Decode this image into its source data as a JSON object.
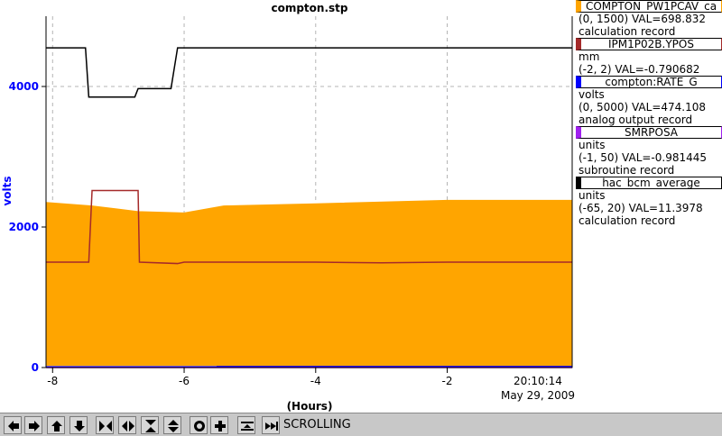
{
  "chart_data": {
    "type": "line",
    "title": "compton.stp",
    "xlabel": "(Hours)",
    "ylabel": "volts",
    "xlim": [
      -8.1,
      -0.1
    ],
    "ylim": [
      0,
      5000
    ],
    "x_ticks": [
      -8,
      -6,
      -4,
      -2
    ],
    "y_ticks": [
      0,
      2000,
      4000
    ],
    "x_tick_labels": [
      "-8",
      "-6",
      "-4",
      "-2"
    ],
    "y_tick_labels": [
      "0",
      "2000",
      "4000"
    ],
    "time_label": "20:10:14",
    "date_label": "May 29, 2009",
    "grid": true,
    "legend_position": "right",
    "series": [
      {
        "name": "compton:RATE_G",
        "color": "#0000ff",
        "style": "band",
        "x": [
          -8.1,
          -5.5,
          -5.45,
          -4.0,
          -3.0,
          -2.1,
          -1.4,
          -0.9,
          -0.1
        ],
        "low": [
          0,
          0,
          0,
          0,
          0,
          0,
          0,
          0,
          0
        ],
        "high": [
          15,
          15,
          500,
          530,
          500,
          350,
          480,
          460,
          470
        ]
      },
      {
        "name": "COMPTON_PW1PCAV_ca",
        "color": "#ffa500",
        "style": "band",
        "x": [
          -8.1,
          -7.4,
          -6.7,
          -6.0,
          -5.4,
          -4.0,
          -2.0,
          -0.1
        ],
        "low": [
          30,
          30,
          30,
          30,
          30,
          30,
          30,
          30
        ],
        "high": [
          2350,
          2300,
          2220,
          2200,
          2300,
          2330,
          2380,
          2380
        ]
      },
      {
        "name": "IPM1P02B.YPOS",
        "color": "#a52a2a",
        "x": [
          -8.1,
          -7.45,
          -7.4,
          -6.7,
          -6.68,
          -6.1,
          -6.0,
          -5.5,
          -5.45,
          -4.0,
          -3.0,
          -2.0,
          -1.0,
          -0.1
        ],
        "y": [
          1500,
          1500,
          2520,
          2520,
          1500,
          1480,
          1500,
          1500,
          1500,
          1500,
          1490,
          1500,
          1500,
          1500
        ]
      },
      {
        "name": "hac_bcm_average",
        "color": "#000000",
        "x": [
          -8.1,
          -7.5,
          -7.45,
          -6.75,
          -6.7,
          -6.2,
          -6.1,
          -5.0,
          -4.0,
          -3.0,
          -2.0,
          -1.0,
          -0.1
        ],
        "y": [
          4550,
          4550,
          3850,
          3850,
          3970,
          3970,
          4550,
          4550,
          4550,
          4550,
          4550,
          4550,
          4550
        ]
      },
      {
        "name": "SMRPOSA",
        "color": "#a020f0",
        "x": [
          -8.1,
          -6.0,
          -4.0,
          -2.0,
          -0.1
        ],
        "y": [
          0,
          0,
          0,
          0,
          0
        ]
      }
    ]
  },
  "legend": [
    {
      "name": "COMPTON_PW1PCAV_ca",
      "color": "#ffa500",
      "units": "",
      "range": "(0, 1500) VAL=698.832",
      "rtype": "calculation record"
    },
    {
      "name": "IPM1P02B.YPOS",
      "color": "#a52a2a",
      "units": "mm",
      "range": "(-2, 2) VAL=-0.790682",
      "rtype": ""
    },
    {
      "name": "compton:RATE_G",
      "color": "#0000ff",
      "units": "volts",
      "range": "(0, 5000) VAL=474.108",
      "rtype": "analog output record"
    },
    {
      "name": "SMRPOSA",
      "color": "#a020f0",
      "units": "units",
      "range": "(-1, 50) VAL=-0.981445",
      "rtype": "subroutine record"
    },
    {
      "name": "hac_bcm_average",
      "color": "#000000",
      "units": "units",
      "range": "(-65, 20) VAL=11.3978",
      "rtype": "calculation record"
    }
  ],
  "toolbar": {
    "buttons": [
      {
        "name": "pan-left-button",
        "icon": "arrow-left-icon"
      },
      {
        "name": "pan-right-button",
        "icon": "arrow-right-icon"
      },
      {
        "name": "pan-up-button",
        "icon": "arrow-up-icon"
      },
      {
        "name": "pan-down-button",
        "icon": "arrow-down-icon"
      },
      {
        "name": "zoom-in-x-button",
        "icon": "zoom-in-x-icon"
      },
      {
        "name": "zoom-out-x-button",
        "icon": "zoom-out-x-icon"
      },
      {
        "name": "zoom-in-y-button",
        "icon": "zoom-in-y-icon"
      },
      {
        "name": "zoom-out-y-button",
        "icon": "zoom-out-y-icon"
      },
      {
        "name": "zoom-box-button",
        "icon": "zoom-box-icon"
      },
      {
        "name": "zoom-in-button",
        "icon": "plus-icon"
      },
      {
        "name": "auto-scale-button",
        "icon": "auto-scale-icon"
      },
      {
        "name": "scroll-to-now-button",
        "icon": "scroll-end-icon"
      }
    ],
    "status": "SCROLLING"
  }
}
